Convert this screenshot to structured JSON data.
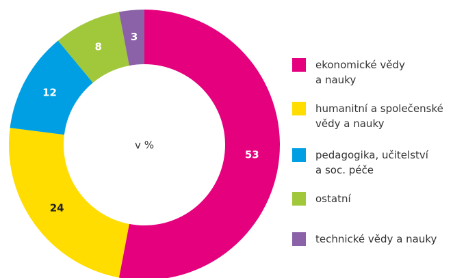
{
  "chart_data": {
    "type": "donut",
    "center_label": "v %",
    "categories": [
      "ekonomické vědy\na nauky",
      "humanitní a společenské\nvědy a nauky",
      "pedagogika, učitelství\na soc. péče",
      "ostatní",
      "technické vědy a nauky"
    ],
    "values": [
      53,
      24,
      12,
      8,
      3
    ],
    "colors": [
      "#e5007e",
      "#ffdd00",
      "#009fe3",
      "#a1c73a",
      "#8b62a8"
    ],
    "value_label_colors": [
      "#ffffff",
      "#222222",
      "#ffffff",
      "#ffffff",
      "#ffffff"
    ],
    "legend": "right"
  }
}
